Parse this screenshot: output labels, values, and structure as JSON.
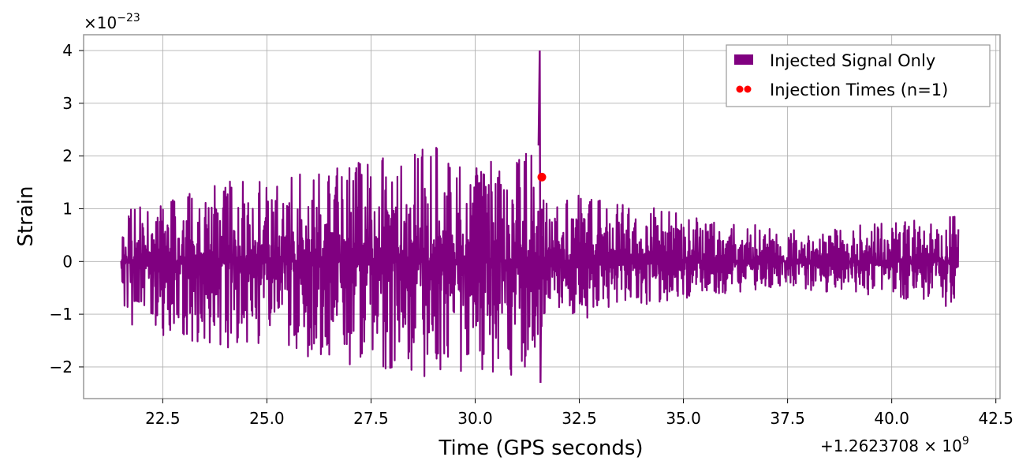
{
  "chart_data": {
    "type": "line",
    "xlabel": "Time (GPS seconds)",
    "ylabel": "Strain",
    "x_offset_label": "+1.2623708 × 10",
    "x_offset_exp": "9",
    "y_scale_label": "×10",
    "y_scale_exp": "−23",
    "xlim": [
      20.6,
      42.6
    ],
    "ylim": [
      -2.6,
      4.3
    ],
    "xticks": [
      22.5,
      25.0,
      27.5,
      30.0,
      32.5,
      35.0,
      37.5,
      40.0,
      42.5
    ],
    "xtick_labels": [
      "22.5",
      "25.0",
      "27.5",
      "30.0",
      "32.5",
      "35.0",
      "37.5",
      "40.0",
      "42.5"
    ],
    "yticks": [
      -2,
      -1,
      0,
      1,
      2,
      3,
      4
    ],
    "ytick_labels": [
      "−2",
      "−1",
      "0",
      "1",
      "2",
      "3",
      "4"
    ],
    "grid": true,
    "legend_position": "top-right",
    "series": [
      {
        "name": "Injected Signal Only",
        "kind": "line",
        "color": "#800080",
        "x_start": 21.5,
        "x_end": 41.6,
        "peak_x": 31.55,
        "peak_max": 4.0,
        "peak_min": -2.3,
        "envelope": [
          {
            "x": 21.5,
            "max": 1.0,
            "min": -1.2
          },
          {
            "x": 22.5,
            "max": 1.2,
            "min": -1.4
          },
          {
            "x": 25.0,
            "max": 1.7,
            "min": -1.8
          },
          {
            "x": 27.5,
            "max": 1.9,
            "min": -2.0
          },
          {
            "x": 28.6,
            "max": 2.3,
            "min": -2.2
          },
          {
            "x": 30.0,
            "max": 1.9,
            "min": -2.1
          },
          {
            "x": 31.4,
            "max": 2.1,
            "min": -2.2
          },
          {
            "x": 31.7,
            "max": 1.1,
            "min": -1.1
          },
          {
            "x": 32.5,
            "max": 1.3,
            "min": -1.1
          },
          {
            "x": 35.0,
            "max": 0.9,
            "min": -0.7
          },
          {
            "x": 37.5,
            "max": 0.6,
            "min": -0.5
          },
          {
            "x": 40.0,
            "max": 0.8,
            "min": -0.7
          },
          {
            "x": 41.6,
            "max": 0.9,
            "min": -0.9
          }
        ]
      },
      {
        "name": "Injection Times (n=1)",
        "kind": "scatter",
        "color": "#ff0000",
        "points": [
          {
            "x": 31.6,
            "y": 1.6
          }
        ]
      }
    ]
  }
}
